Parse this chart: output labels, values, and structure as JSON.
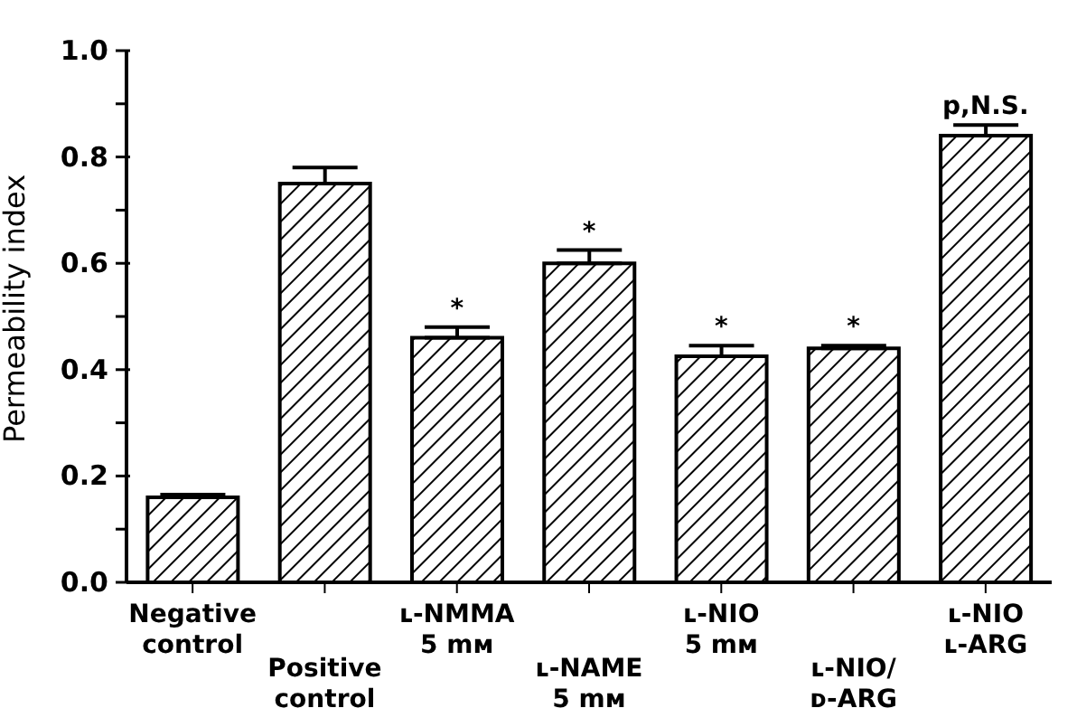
{
  "chart_data": {
    "type": "bar",
    "ylabel": "Permeability index",
    "categories": [
      "Negative\ncontrol",
      "Positive\ncontrol",
      "ʟ-NMMA\n5 mᴍ",
      "ʟ-NAME\n5 mᴍ",
      "ʟ-NIO\n5 mᴍ",
      "ʟ-NIO/\nᴅ-ARG",
      "ʟ-NIO\nʟ-ARG"
    ],
    "values": [
      0.16,
      0.75,
      0.46,
      0.6,
      0.425,
      0.44,
      0.84
    ],
    "errors": [
      [
        0.16,
        0.165
      ],
      [
        0.75,
        0.78
      ],
      [
        0.46,
        0.48
      ],
      [
        0.6,
        0.625
      ],
      [
        0.425,
        0.445
      ],
      [
        0.44,
        0.445
      ],
      [
        0.84,
        0.86
      ]
    ],
    "color": "#000000",
    "ylim": [
      0,
      1
    ],
    "yticks": [
      {
        "value": 0,
        "label": "0.0"
      },
      {
        "value": 0.1,
        "label": null
      },
      {
        "value": 0.2,
        "label": "0.2"
      },
      {
        "value": 0.3,
        "label": null
      },
      {
        "value": 0.4,
        "label": "0.4"
      },
      {
        "value": 0.5,
        "label": null
      },
      {
        "value": 0.6,
        "label": "0.6"
      },
      {
        "value": 0.7,
        "label": null
      },
      {
        "value": 0.8,
        "label": "0.8"
      },
      {
        "value": 0.9,
        "label": null
      },
      {
        "value": 1,
        "label": "1.0"
      }
    ],
    "annotations": [
      {
        "text": "*",
        "x": "ʟ-NMMA\n5 mᴍ",
        "y": 0.48
      },
      {
        "text": "*",
        "x": "ʟ-NAME\n5 mᴍ",
        "y": 0.625
      },
      {
        "text": "*",
        "x": "ʟ-NIO\n5 mᴍ",
        "y": 0.445
      },
      {
        "text": "*",
        "x": "ʟ-NIO/\nᴅ-ARG",
        "y": 0.445
      },
      {
        "text": "p,N.S.",
        "x": "ʟ-NIO\nʟ-ARG",
        "y": 0.86
      }
    ],
    "grid": false
  }
}
